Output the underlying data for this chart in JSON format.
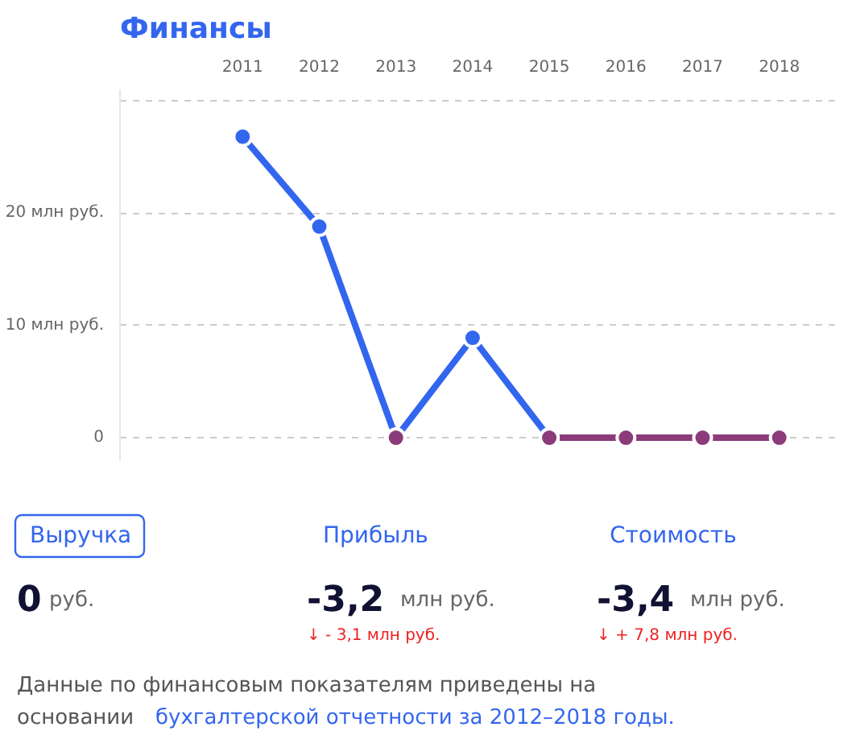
{
  "chart_data": [
    {
      "type": "line",
      "title": "Финансы",
      "categories": [
        "2011",
        "2012",
        "2013",
        "2014",
        "2015",
        "2016",
        "2017",
        "2018"
      ],
      "series": [
        {
          "color": "#3366ee",
          "colors": [
            "#3366ee",
            "#3366ee",
            "#8b3a7a",
            "#3366ee",
            "#8b3a7a",
            "#8b3a7a",
            "#8b3a7a",
            "#8b3a7a"
          ],
          "values": [
            26.8,
            18.8,
            0,
            8.9,
            0,
            null,
            null,
            null
          ]
        },
        {
          "color": "#8b3a7a",
          "values": [
            null,
            null,
            null,
            null,
            0,
            0,
            0,
            0
          ]
        }
      ],
      "ylim": [
        -2,
        31
      ],
      "yticks": [
        {
          "value": 0,
          "label": "0"
        },
        {
          "value": 10,
          "label": "10 млн руб."
        },
        {
          "value": 20,
          "label": "20 млн руб."
        },
        {
          "value": 30,
          "label": null
        }
      ],
      "grid": "y",
      "marker": "circle",
      "line_style": "solid"
    },
    {
      "type": "other",
      "annotations": [
        "Выручка",
        "0",
        "руб.",
        "Прибыль",
        "-3,2",
        "млн руб.",
        "↓ - 3,1 млн руб.",
        "Стоимость",
        "-3,4",
        "млн руб.",
        "↓ + 7,8 млн руб.",
        "Данные по финансовым показателям приведены на",
        "основании",
        "бухгалтерской отчетности за 2012–2018 годы."
      ]
    }
  ]
}
